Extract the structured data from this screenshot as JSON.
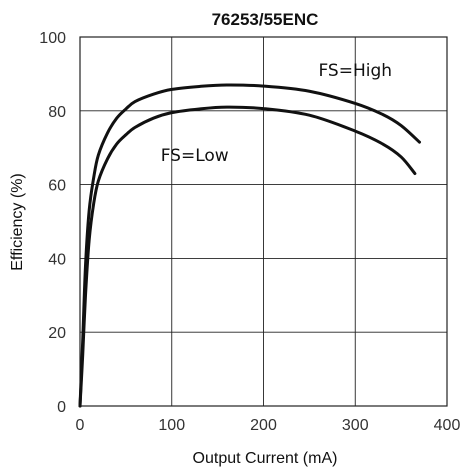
{
  "chart_data": {
    "type": "line",
    "title": "76253/55ENC",
    "xlabel": "Output Current (mA)",
    "ylabel": "Efficiency (%)",
    "xlim": [
      0,
      400
    ],
    "ylim": [
      0,
      100
    ],
    "xticks": [
      "0",
      "100",
      "200",
      "300",
      "400"
    ],
    "yticks": [
      "0",
      "20",
      "40",
      "60",
      "80",
      "100"
    ],
    "grid": true,
    "legend": "none",
    "series": [
      {
        "name": "FS=High",
        "x": [
          0,
          3,
          6,
          10,
          15,
          20,
          30,
          40,
          50,
          60,
          80,
          100,
          130,
          160,
          200,
          250,
          300,
          330,
          350,
          370
        ],
        "y": [
          0,
          18,
          38,
          53,
          62,
          68,
          74,
          78,
          80.5,
          82.5,
          84.5,
          85.8,
          86.6,
          87,
          86.7,
          85.3,
          82,
          79,
          76,
          71.5
        ]
      },
      {
        "name": "FS=Low",
        "x": [
          0,
          3,
          6,
          10,
          15,
          20,
          30,
          40,
          50,
          60,
          80,
          100,
          130,
          160,
          200,
          250,
          300,
          330,
          350,
          365
        ],
        "y": [
          0,
          14,
          30,
          45,
          55,
          61,
          67,
          71,
          73.5,
          75.5,
          78,
          79.5,
          80.5,
          81,
          80.6,
          78.8,
          74.5,
          71,
          67.5,
          63
        ]
      }
    ],
    "annotations": [
      {
        "text": "FS=High",
        "x": 300,
        "y": 91
      },
      {
        "text": "FS=Low",
        "x": 125,
        "y": 68
      }
    ]
  }
}
